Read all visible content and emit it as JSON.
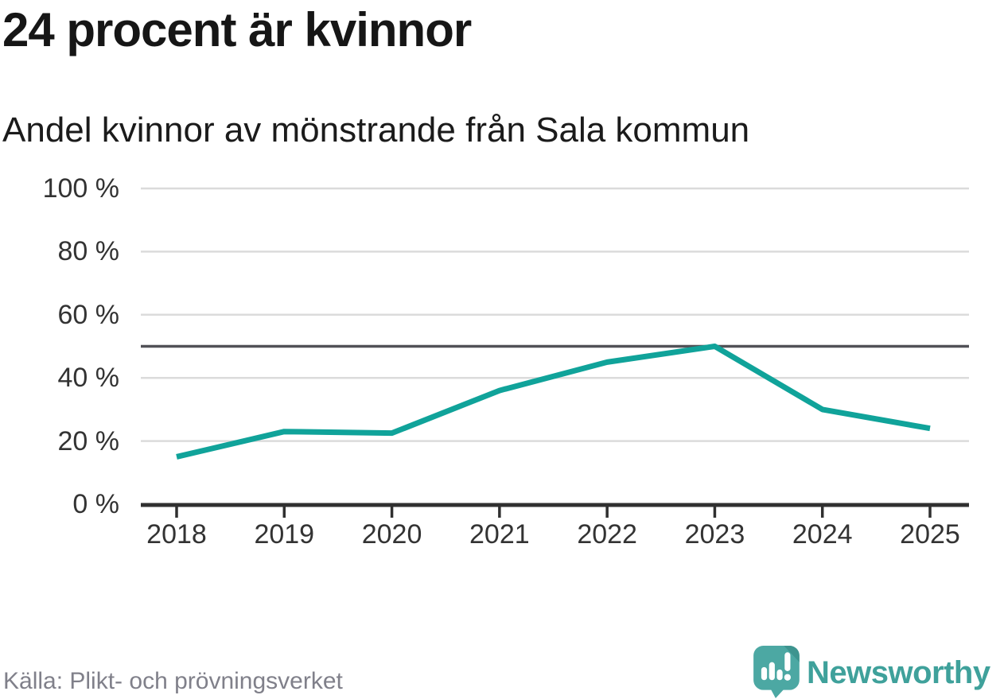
{
  "header": {
    "title": "24 procent är kvinnor",
    "subtitle": "Andel kvinnor av mönstrande från Sala kommun"
  },
  "footer": {
    "source": "Källa: Plikt- och prövningsverket",
    "brand": "Newsworthy"
  },
  "colors": {
    "line": "#10a39a",
    "reference_line": "#515157",
    "grid": "#dbdbdb",
    "axis": "#303030",
    "tick_label": "#333333",
    "title": "#161616",
    "source_text": "#80808a",
    "brand_teal": "#3fa19b",
    "logo_bubble": "#4ca8a3",
    "logo_fold": "#3e948f"
  },
  "chart_data": {
    "type": "line",
    "title": "24 procent är kvinnor",
    "subtitle": "Andel kvinnor av mönstrande från Sala kommun",
    "x": [
      "2018",
      "2019",
      "2020",
      "2021",
      "2022",
      "2023",
      "2024",
      "2025"
    ],
    "series": [
      {
        "name": "Andel kvinnor av mönstrande från Sala kommun",
        "values": [
          15,
          23,
          22.5,
          36,
          45,
          50,
          30,
          24
        ]
      }
    ],
    "ylim": [
      0,
      100
    ],
    "y_ticks": [
      "100 %",
      "80 %",
      "60 %",
      "40 %",
      "20 %",
      "0 %"
    ],
    "y_tick_values": [
      100,
      80,
      60,
      40,
      20,
      0
    ],
    "reference_line": 50,
    "grid": true,
    "legend_position": "none",
    "source": "Källa: Plikt- och prövningsverket"
  }
}
